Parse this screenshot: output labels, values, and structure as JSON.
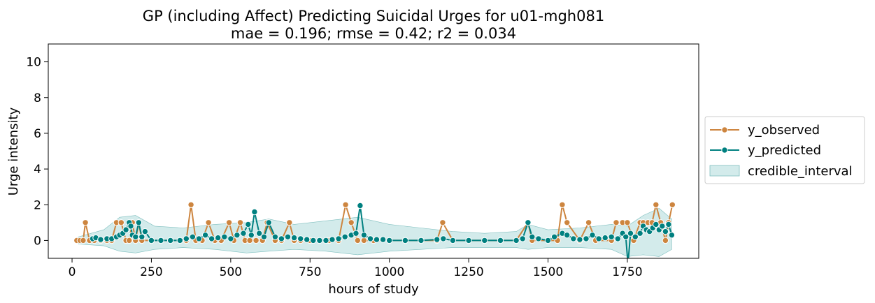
{
  "chart_data": {
    "type": "line",
    "title_line1": "GP (including Affect) Predicting Suicidal Urges for u01-mgh081",
    "title_line2": "mae = 0.196; rmse = 0.42; r2 = 0.034",
    "xlabel": "hours of study",
    "ylabel": "Urge intensity",
    "xlim": [
      -75,
      1975
    ],
    "ylim": [
      -1,
      11
    ],
    "x_ticks": [
      0,
      250,
      500,
      750,
      1000,
      1250,
      1500,
      1750
    ],
    "x_tick_labels": [
      "0",
      "250",
      "500",
      "750",
      "1000",
      "1250",
      "1500",
      "1750"
    ],
    "y_ticks": [
      0,
      2,
      4,
      6,
      8,
      10
    ],
    "y_tick_labels": [
      "0",
      "2",
      "4",
      "6",
      "8",
      "10"
    ],
    "legend": {
      "placement": "right-outside",
      "entries": [
        "y_observed",
        "y_predicted",
        "credible_interval"
      ]
    },
    "colors": {
      "observed": "#cd853f",
      "predicted": "#008080",
      "interval": "#a8d8d8"
    },
    "series": [
      {
        "name": "y_observed",
        "x": [
          15,
          25,
          35,
          42,
          55,
          70,
          90,
          110,
          125,
          140,
          155,
          170,
          180,
          190,
          200,
          210,
          220,
          250,
          280,
          310,
          340,
          360,
          375,
          390,
          410,
          430,
          450,
          470,
          495,
          510,
          530,
          545,
          560,
          580,
          600,
          615,
          640,
          660,
          685,
          700,
          720,
          750,
          780,
          810,
          840,
          862,
          880,
          900,
          920,
          950,
          1000,
          1050,
          1100,
          1150,
          1168,
          1200,
          1250,
          1300,
          1350,
          1400,
          1437,
          1450,
          1500,
          1530,
          1545,
          1560,
          1600,
          1628,
          1650,
          1700,
          1715,
          1735,
          1750,
          1770,
          1790,
          1800,
          1815,
          1828,
          1840,
          1855,
          1870,
          1880,
          1892
        ],
        "values": [
          0,
          0,
          0,
          1,
          0,
          0,
          0,
          0,
          0,
          1,
          1,
          0,
          0,
          1,
          0,
          1,
          0,
          0,
          0,
          0,
          0,
          0,
          2,
          0,
          0,
          1,
          0,
          0,
          1,
          0,
          1,
          0,
          0,
          0,
          0,
          1,
          0,
          0,
          1,
          0,
          0,
          0,
          0,
          0,
          0,
          2,
          1,
          0,
          0,
          0,
          0,
          0,
          0,
          0,
          1,
          0,
          0,
          0,
          0,
          0,
          1,
          0,
          0,
          0,
          2,
          1,
          0,
          1,
          0,
          0,
          1,
          1,
          1,
          0,
          1,
          1,
          1,
          1,
          2,
          1,
          0,
          1,
          2
        ]
      },
      {
        "name": "y_predicted",
        "x": [
          65,
          75,
          90,
          110,
          125,
          140,
          150,
          160,
          170,
          180,
          185,
          190,
          200,
          210,
          220,
          230,
          250,
          280,
          310,
          340,
          360,
          380,
          400,
          420,
          440,
          460,
          480,
          500,
          520,
          540,
          555,
          565,
          575,
          590,
          605,
          620,
          640,
          660,
          680,
          700,
          720,
          740,
          760,
          780,
          800,
          820,
          840,
          860,
          880,
          895,
          908,
          920,
          940,
          960,
          980,
          1000,
          1050,
          1100,
          1150,
          1170,
          1200,
          1250,
          1300,
          1350,
          1400,
          1420,
          1437,
          1450,
          1470,
          1500,
          1520,
          1545,
          1560,
          1580,
          1600,
          1620,
          1640,
          1660,
          1680,
          1700,
          1720,
          1735,
          1745,
          1752,
          1760,
          1775,
          1790,
          1800,
          1810,
          1820,
          1830,
          1840,
          1850,
          1860,
          1870,
          1880,
          1890
        ],
        "values": [
          0.1,
          0.15,
          0.05,
          0.1,
          0.1,
          0.2,
          0.3,
          0.4,
          0.6,
          1.0,
          0.8,
          0.3,
          0.2,
          1.0,
          0.2,
          0.5,
          0,
          0,
          0,
          0,
          0.1,
          0.2,
          0.1,
          0.3,
          0.1,
          0.15,
          0.2,
          0.1,
          0.3,
          0.4,
          0.9,
          0.3,
          1.6,
          0.4,
          0.2,
          1.0,
          0.2,
          0.1,
          0.2,
          0.15,
          0.1,
          0.05,
          0,
          0,
          0,
          0.05,
          0.1,
          0.2,
          0.3,
          0.4,
          1.95,
          0.3,
          0.1,
          0.05,
          0.05,
          0,
          0,
          0,
          0.05,
          0.1,
          0,
          0,
          0,
          0,
          0,
          0.1,
          1.0,
          0.2,
          0.1,
          0,
          0.2,
          0.4,
          0.3,
          0.1,
          0.05,
          0.1,
          0.3,
          0.1,
          0.15,
          0.2,
          0.1,
          0.4,
          0.2,
          -1.3,
          0.4,
          0.2,
          0.4,
          0.8,
          0.6,
          0.5,
          0.7,
          0.9,
          0.6,
          0.8,
          0.5,
          0.9,
          0.3
        ]
      }
    ],
    "credible_interval": {
      "x": [
        20,
        100,
        150,
        200,
        260,
        350,
        450,
        550,
        620,
        700,
        800,
        900,
        1000,
        1100,
        1200,
        1300,
        1400,
        1437,
        1500,
        1600,
        1700,
        1750,
        1800,
        1850,
        1890
      ],
      "lower": [
        -0.2,
        -0.3,
        -0.6,
        -0.7,
        -0.5,
        -0.4,
        -0.5,
        -0.7,
        -0.6,
        -0.5,
        -0.6,
        -0.8,
        -0.6,
        -0.5,
        -0.4,
        -0.4,
        -0.4,
        -0.5,
        -0.4,
        -0.4,
        -0.5,
        -0.9,
        -0.8,
        -0.9,
        -0.5
      ],
      "upper": [
        0.2,
        0.6,
        1.3,
        1.4,
        0.8,
        0.7,
        0.9,
        1.0,
        1.2,
        0.9,
        1.1,
        1.3,
        0.9,
        0.7,
        0.5,
        0.4,
        0.5,
        0.9,
        0.6,
        0.7,
        0.9,
        0.8,
        1.4,
        1.8,
        1.2
      ]
    }
  }
}
